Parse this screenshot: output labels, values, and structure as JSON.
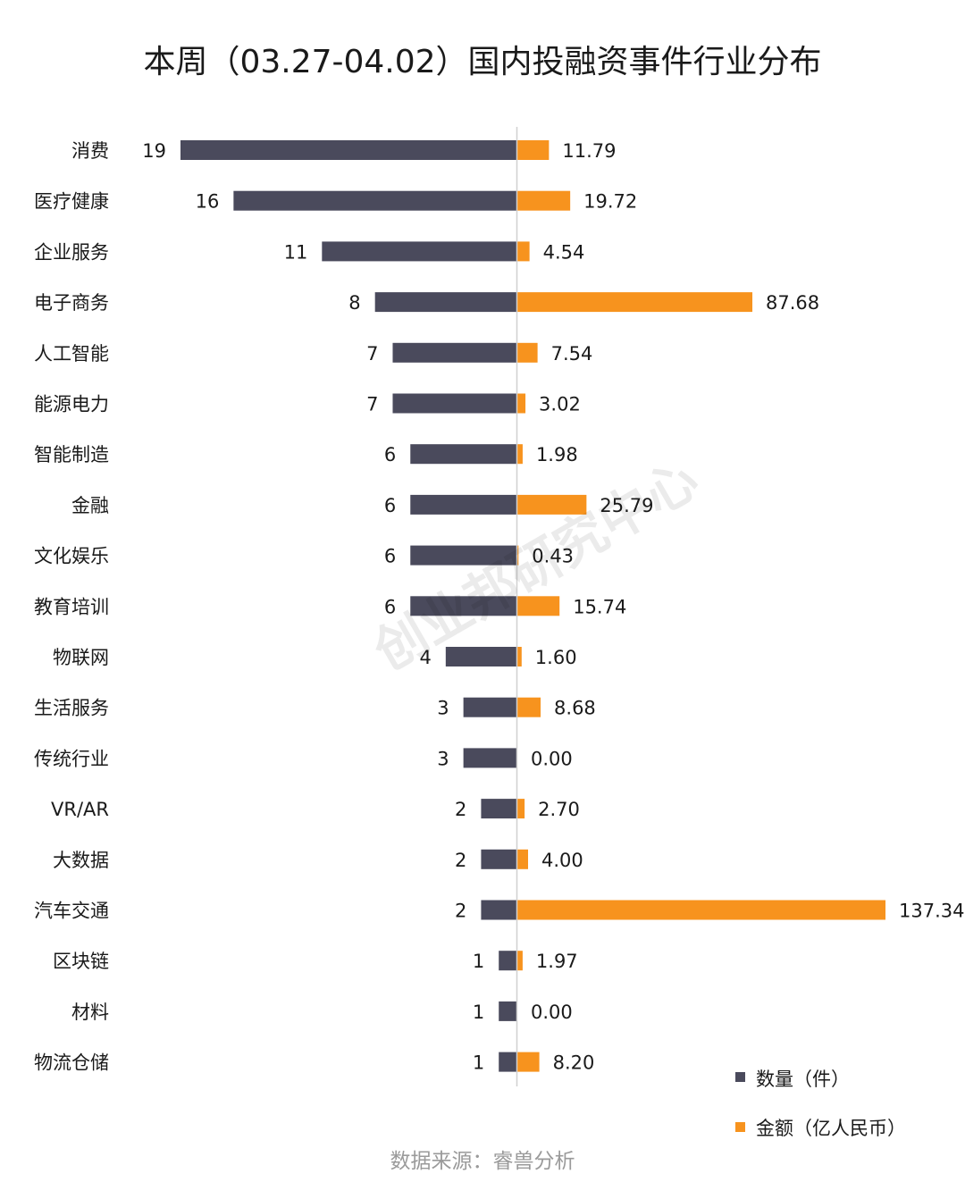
{
  "chart_data": {
    "type": "bar",
    "title": "本周（03.27-04.02）国内投融资事件行业分布",
    "categories": [
      "消费",
      "医疗健康",
      "企业服务",
      "电子商务",
      "人工智能",
      "能源电力",
      "智能制造",
      "金融",
      "文化娱乐",
      "教育培训",
      "物联网",
      "生活服务",
      "传统行业",
      "VR/AR",
      "大数据",
      "汽车交通",
      "区块链",
      "材料",
      "物流仓储"
    ],
    "series": [
      {
        "name": "数量（件）",
        "values": [
          19,
          16,
          11,
          8,
          7,
          7,
          6,
          6,
          6,
          6,
          4,
          3,
          3,
          2,
          2,
          2,
          1,
          1,
          1
        ],
        "labels": [
          "19",
          "16",
          "11",
          "8",
          "7",
          "7",
          "6",
          "6",
          "6",
          "6",
          "4",
          "3",
          "3",
          "2",
          "2",
          "2",
          "1",
          "1",
          "1"
        ],
        "color": "#4a4a5c"
      },
      {
        "name": "金额（亿人民币）",
        "values": [
          11.79,
          19.72,
          4.54,
          87.68,
          7.54,
          3.02,
          1.98,
          25.79,
          0.43,
          15.74,
          1.6,
          8.68,
          0.0,
          2.7,
          4.0,
          137.34,
          1.97,
          0.0,
          8.2
        ],
        "labels": [
          "11.79",
          "19.72",
          "4.54",
          "87.68",
          "7.54",
          "3.02",
          "1.98",
          "25.79",
          "0.43",
          "15.74",
          "1.60",
          "8.68",
          "0.00",
          "2.70",
          "4.00",
          "137.34",
          "1.97",
          "0.00",
          "8.20"
        ],
        "color": "#f7931e"
      }
    ],
    "legend_position": "bottom-right",
    "grid": false
  },
  "watermark": "创业邦研究中心",
  "source": "数据来源：睿兽分析"
}
